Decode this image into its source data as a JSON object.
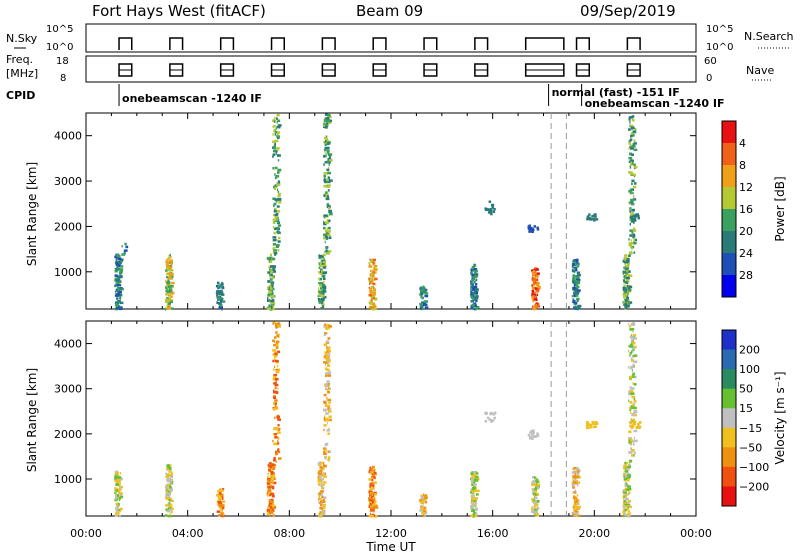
{
  "header": {
    "station": "Fort Hays West (fitACF)",
    "beam": "Beam 09",
    "date": "09/Sep/2019"
  },
  "top_panels": {
    "nsky_label": "N.Sky",
    "nsky_ticks": [
      "10^5",
      "10^0"
    ],
    "nsearch_ticks": [
      "10^5",
      "10^0"
    ],
    "nsearch_label": "N.Search",
    "freq_label_1": "Freq.",
    "freq_label_2": "[MHz]",
    "freq_ticks": [
      "18",
      "8"
    ],
    "nave_ticks": [
      "60",
      "0"
    ],
    "nave_label": "Nave",
    "cpid_label": "CPID",
    "cpid_segments": [
      {
        "start_h": 1.3,
        "label": "onebeamscan -1240 IF"
      },
      {
        "start_h": 18.2,
        "label": "normal (fast) -151 IF"
      },
      {
        "start_h": 19.5,
        "label": "onebeamscan -1240 IF"
      }
    ],
    "activity_periods_h": [
      [
        1.3,
        1.8
      ],
      [
        3.3,
        3.8
      ],
      [
        5.3,
        5.8
      ],
      [
        7.3,
        7.8
      ],
      [
        9.3,
        9.8
      ],
      [
        11.3,
        11.8
      ],
      [
        13.3,
        13.8
      ],
      [
        15.3,
        15.8
      ],
      [
        17.3,
        18.8
      ],
      [
        19.3,
        19.8
      ],
      [
        21.3,
        21.8
      ]
    ]
  },
  "chart_data": [
    {
      "type": "heatmap",
      "name": "power",
      "ylabel": "Slant Range [km]",
      "xlabel": "",
      "xlim_h": [
        0,
        24
      ],
      "ylim": [
        180,
        4500
      ],
      "yticks": [
        "1000",
        "2000",
        "3000",
        "4000"
      ],
      "xticks": [
        "00:00",
        "04:00",
        "08:00",
        "12:00",
        "16:00",
        "20:00",
        "00:00"
      ],
      "colorbar": {
        "label": "Power [dB]",
        "ticks": [
          "4",
          "8",
          "12",
          "16",
          "20",
          "24",
          "28"
        ],
        "levels": [
          "#0000ee",
          "#1e4fb4",
          "#2a7a7a",
          "#3aa060",
          "#b6c832",
          "#f0a018",
          "#f06018",
          "#e81010"
        ]
      },
      "bursts": [
        {
          "t": 1.5,
          "range": [
            200,
            1700
          ],
          "level": 2
        },
        {
          "t": 3.5,
          "range": [
            200,
            1400
          ],
          "level": 4
        },
        {
          "t": 5.5,
          "range": [
            200,
            800
          ],
          "level": 2
        },
        {
          "t": 7.5,
          "range": [
            200,
            4500
          ],
          "level": 3
        },
        {
          "t": 9.5,
          "range": [
            200,
            4500
          ],
          "level": 3
        },
        {
          "t": 11.5,
          "range": [
            200,
            1300
          ],
          "level": 5
        },
        {
          "t": 13.5,
          "range": [
            200,
            700
          ],
          "level": 2
        },
        {
          "t": 15.5,
          "range": [
            200,
            1200
          ],
          "level": 2
        },
        {
          "t": 17.9,
          "range": [
            200,
            1100
          ],
          "level": 6
        },
        {
          "t": 19.5,
          "range": [
            200,
            1300
          ],
          "level": 2
        },
        {
          "t": 21.5,
          "range": [
            200,
            4500
          ],
          "level": 3
        }
      ],
      "features": [
        {
          "t": 15.9,
          "range": [
            2300,
            2600
          ],
          "level": 2
        },
        {
          "t": 17.6,
          "range": [
            1900,
            2100
          ],
          "level": 1
        },
        {
          "t": 19.9,
          "range": [
            2150,
            2300
          ],
          "level": 2
        },
        {
          "t": 21.6,
          "range": [
            2150,
            2300
          ],
          "level": 2
        }
      ]
    },
    {
      "type": "heatmap",
      "name": "velocity",
      "ylabel": "Slant Range [km]",
      "xlabel": "Time UT",
      "xlim_h": [
        0,
        24
      ],
      "ylim": [
        180,
        4500
      ],
      "yticks": [
        "1000",
        "2000",
        "3000",
        "4000"
      ],
      "xticks": [
        "00:00",
        "04:00",
        "08:00",
        "12:00",
        "16:00",
        "20:00",
        "00:00"
      ],
      "colorbar": {
        "label": "Velocity [m s⁻¹]",
        "ticks": [
          "200",
          "100",
          "50",
          "15",
          "−15",
          "−50",
          "−100",
          "−200"
        ],
        "levels": [
          "#1e30c8",
          "#2a6ab0",
          "#2a8a60",
          "#66c030",
          "#c0c0c0",
          "#f0c020",
          "#f09010",
          "#f05010",
          "#e81010"
        ]
      },
      "bursts": [
        {
          "t": 1.5,
          "range": [
            200,
            1200
          ],
          "level": 4
        },
        {
          "t": 3.5,
          "range": [
            200,
            1350
          ],
          "level": 4
        },
        {
          "t": 5.5,
          "range": [
            200,
            800
          ],
          "level": 6
        },
        {
          "t": 7.5,
          "range": [
            200,
            4500
          ],
          "level": 6
        },
        {
          "t": 9.5,
          "range": [
            200,
            4500
          ],
          "level": 5
        },
        {
          "t": 11.5,
          "range": [
            200,
            1300
          ],
          "level": 6
        },
        {
          "t": 13.5,
          "range": [
            200,
            700
          ],
          "level": 5
        },
        {
          "t": 15.5,
          "range": [
            200,
            1200
          ],
          "level": 4
        },
        {
          "t": 17.9,
          "range": [
            200,
            1100
          ],
          "level": 4
        },
        {
          "t": 19.5,
          "range": [
            200,
            1300
          ],
          "level": 5
        },
        {
          "t": 21.5,
          "range": [
            200,
            4500
          ],
          "level": 4
        }
      ],
      "features": [
        {
          "t": 15.9,
          "range": [
            2300,
            2500
          ],
          "level": 4
        },
        {
          "t": 17.6,
          "range": [
            1900,
            2100
          ],
          "level": 4
        },
        {
          "t": 19.9,
          "range": [
            2150,
            2300
          ],
          "level": 5
        },
        {
          "t": 21.6,
          "range": [
            2150,
            2300
          ],
          "level": 5
        }
      ]
    }
  ],
  "dashed_markers_h": [
    18.3,
    18.9
  ]
}
